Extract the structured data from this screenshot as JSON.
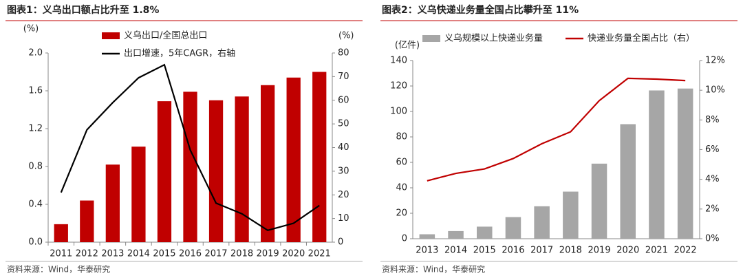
{
  "chart_data": [
    {
      "type": "bar",
      "title": "图表1：义乌出口额占比升至 1.8%",
      "source": "资料来源：Wind，华泰研究",
      "ylabel": "(%)",
      "y2label": "(%)",
      "categories": [
        "2011",
        "2012",
        "2013",
        "2014",
        "2015",
        "2016",
        "2017",
        "2018",
        "2019",
        "2020",
        "2021"
      ],
      "series": [
        {
          "name": "义乌出口/全国总出口",
          "type": "bar",
          "color": "#c00000",
          "values": [
            0.19,
            0.44,
            0.82,
            1.01,
            1.49,
            1.59,
            1.5,
            1.54,
            1.66,
            1.74,
            1.8
          ]
        },
        {
          "name": "出口增速，5年CAGR，右轴",
          "type": "line",
          "axis": "y2",
          "color": "#000000",
          "values": [
            21,
            47.5,
            59,
            69.5,
            75,
            39,
            16.5,
            12,
            5,
            8,
            15.5
          ]
        }
      ],
      "ylim": [
        0,
        2
      ],
      "yticks": [
        {
          "value": 0,
          "label": "0.0"
        },
        0.4,
        0.8,
        1.2,
        1.6,
        {
          "value": 2,
          "label": "2.0"
        }
      ],
      "y2lim": [
        0,
        80
      ],
      "y2ticks": [
        0,
        10,
        20,
        30,
        40,
        50,
        60,
        70,
        80
      ],
      "grid": false
    },
    {
      "type": "bar",
      "title": "图表2：义乌快递业务量全国占比攀升至 11%",
      "source": "资料来源：Wind，华泰研究",
      "ylabel": "(亿件)",
      "categories": [
        "2013",
        "2014",
        "2015",
        "2016",
        "2017",
        "2018",
        "2019",
        "2020",
        "2021",
        "2022"
      ],
      "series": [
        {
          "name": "义乌规模以上快递业务量",
          "type": "bar",
          "color": "#a6a6a6",
          "values": [
            3.5,
            6,
            9.5,
            17,
            25.5,
            37,
            59,
            90,
            116.5,
            118
          ]
        },
        {
          "name": "快递业务量全国占比（右）",
          "type": "line",
          "axis": "y2",
          "color": "#c00000",
          "values": [
            3.9,
            4.4,
            4.7,
            5.4,
            6.4,
            7.2,
            9.3,
            10.8,
            10.75,
            10.65
          ]
        }
      ],
      "ylim": [
        0,
        140
      ],
      "yticks": [
        0,
        20,
        40,
        60,
        80,
        100,
        120,
        140
      ],
      "y2lim": [
        0,
        12
      ],
      "y2ticks": [
        {
          "value": 0,
          "label": "0%"
        },
        {
          "value": 2,
          "label": "2%"
        },
        {
          "value": 4,
          "label": "4%"
        },
        {
          "value": 6,
          "label": "6%"
        },
        {
          "value": 8,
          "label": "8%"
        },
        {
          "value": 10,
          "label": "10%"
        },
        {
          "value": 12,
          "label": "12%"
        }
      ],
      "grid": false
    }
  ]
}
